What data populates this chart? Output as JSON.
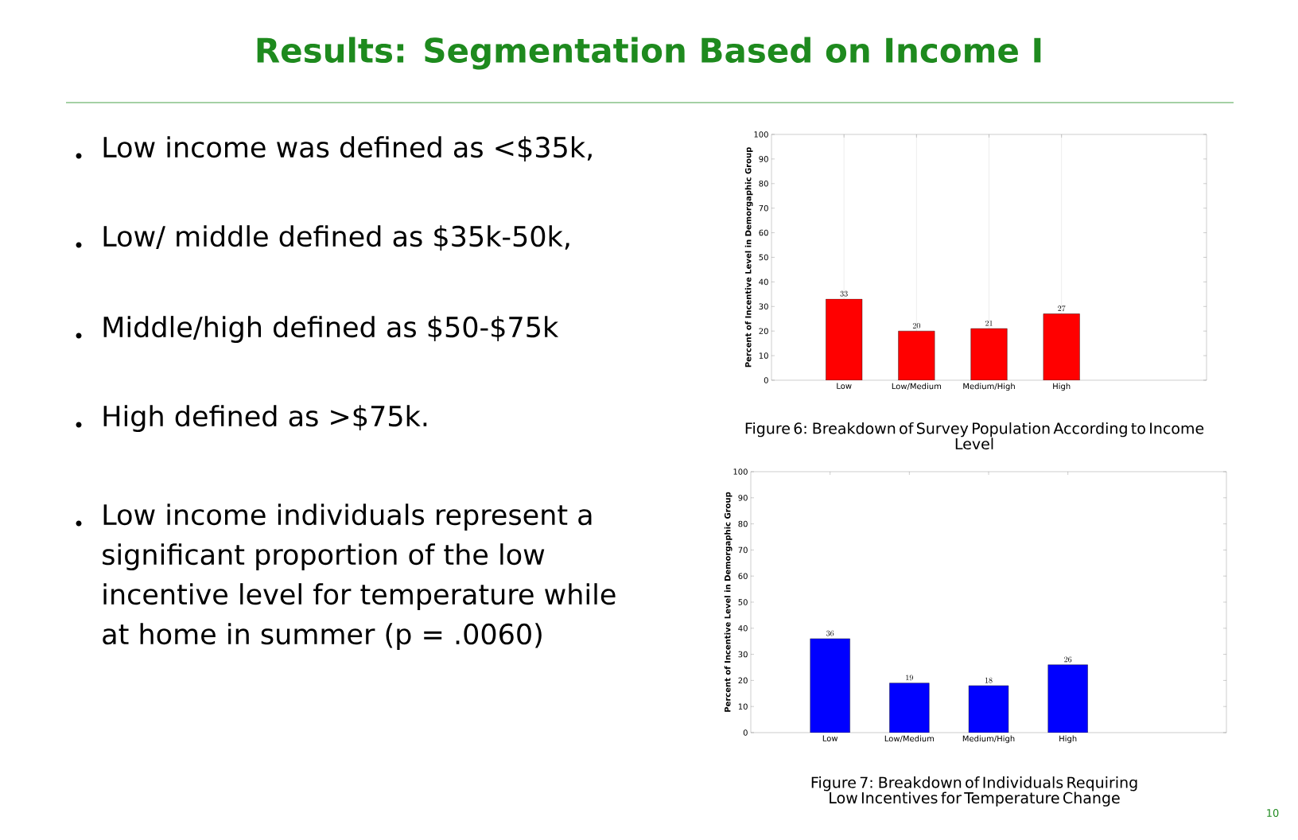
{
  "chart_data": [
    {
      "type": "other",
      "title": "Results: Segmentation Based on Income I",
      "annotations": [
        "Low income was defined as <$35k,",
        "Low/ middle defined as $35k-50k,",
        "Middle/high defined as $50-$75k",
        "High defined as >$75k.",
        "Low income individuals represent a significant proportion of the low incentive level for temperature while at home in summer  (p = .0060)",
        "10"
      ]
    },
    {
      "type": "bar",
      "categories": [
        "Low",
        "Low/Medium",
        "Medium/High",
        "High"
      ],
      "values": [
        33,
        20,
        21,
        27
      ],
      "color": "#ff0000",
      "ylabel": "Percent of Incentive Level in Demorgaphic Group",
      "ylim": [
        0,
        100
      ],
      "yticks": [
        0,
        10,
        20,
        30,
        40,
        50,
        60,
        70,
        80,
        90,
        100
      ],
      "grid": "x",
      "data_labels": true,
      "annotations": [
        "Figure 6: Breakdown of Survey Population According to Income Level"
      ]
    },
    {
      "type": "bar",
      "categories": [
        "Low",
        "Low/Medium",
        "Medium/High",
        "High"
      ],
      "values": [
        36,
        19,
        18,
        26
      ],
      "color": "#0000ff",
      "ylabel": "Percent of Incentive Level in Demorgaphic Group",
      "ylim": [
        0,
        100
      ],
      "yticks": [
        0,
        10,
        20,
        30,
        40,
        50,
        60,
        70,
        80,
        90,
        100
      ],
      "data_labels": true,
      "annotations": [
        "Figure 7: Breakdown of Individuals Requiring Low Incentives for Temperature Change"
      ]
    }
  ]
}
